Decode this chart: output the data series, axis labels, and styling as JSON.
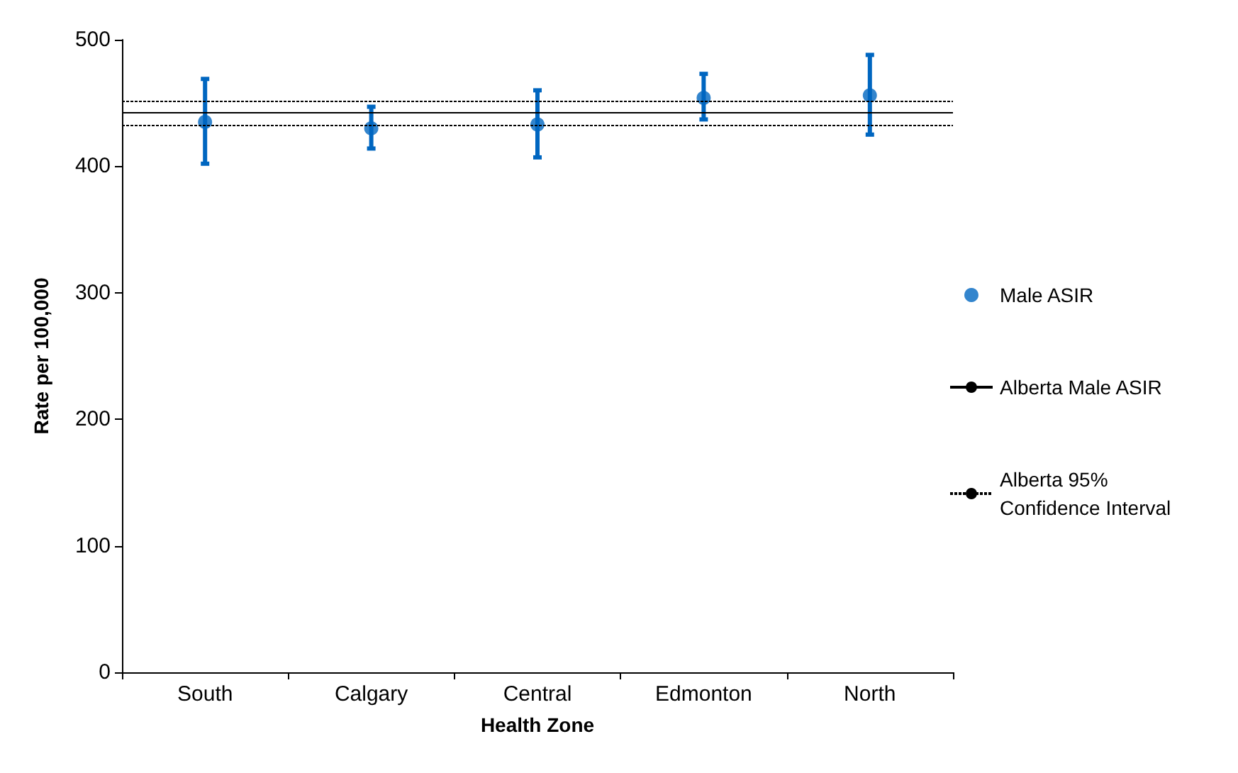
{
  "chart_data": {
    "type": "scatter",
    "xlabel": "Health Zone",
    "ylabel": "Rate per 100,000",
    "categories": [
      "South",
      "Calgary",
      "Central",
      "Edmonton",
      "North"
    ],
    "series": [
      {
        "name": "Male ASIR",
        "color": "#0066c0",
        "values": [
          435,
          430,
          433,
          454,
          456
        ],
        "errors": [
          [
            402,
            469
          ],
          [
            414,
            447
          ],
          [
            407,
            460
          ],
          [
            437,
            473
          ],
          [
            425,
            488
          ]
        ]
      }
    ],
    "ref_lines": [
      {
        "axis": "y",
        "value": 442,
        "label": "Alberta Male ASIR",
        "color": "#000000",
        "line_style": "solid"
      },
      {
        "axis": "y",
        "value": 452,
        "label": "Alberta 95% Confidence Interval",
        "color": "#000000",
        "line_style": "dotted"
      },
      {
        "axis": "y",
        "value": 433,
        "label": null,
        "color": "#000000",
        "line_style": "dotted"
      }
    ],
    "ylim": [
      0,
      500
    ],
    "yticks": [
      0,
      100,
      200,
      300,
      400,
      500
    ],
    "grid": false,
    "legend": "right",
    "marker": "circle"
  }
}
